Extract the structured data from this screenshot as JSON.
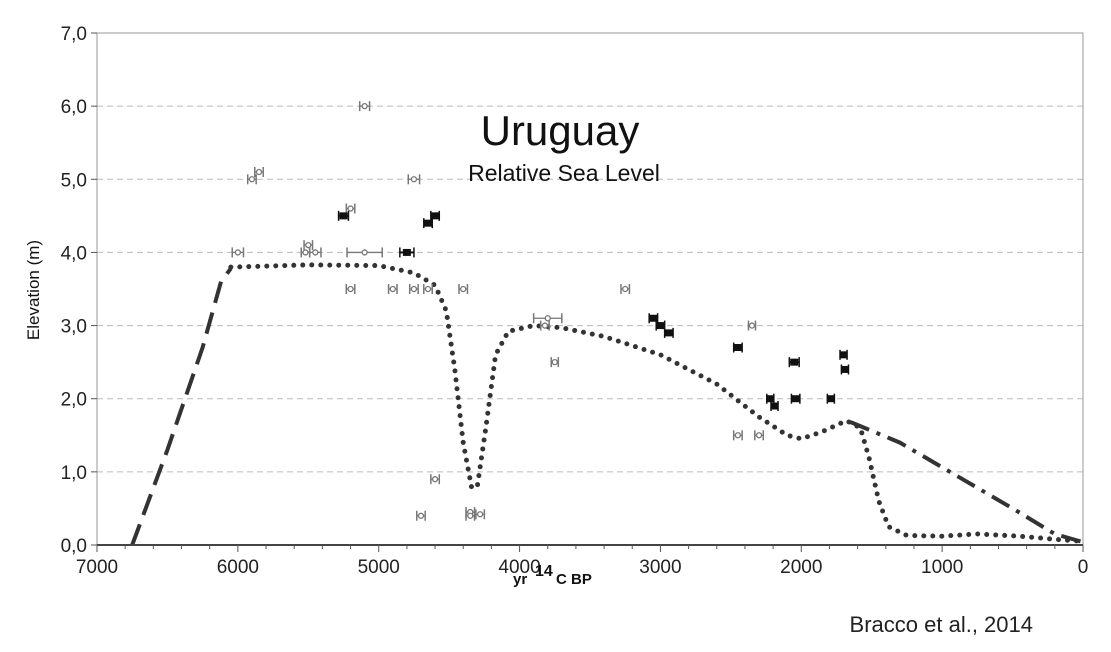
{
  "chart_data": {
    "type": "scatter",
    "title": "Uruguay",
    "subtitle": "Relative Sea Level",
    "xlabel_prefix": "yr ",
    "xlabel_sup": "14",
    "xlabel_suffix": "C BP",
    "ylabel": "Elevation (m)",
    "credit": "Bracco et al., 2014",
    "xlim": [
      7000,
      0
    ],
    "ylim": [
      0,
      7
    ],
    "x_reversed": true,
    "grid": "horizontal dashed",
    "x_ticks": [
      "7000",
      "6000",
      "5000",
      "4000",
      "3000",
      "2000",
      "1000",
      "0"
    ],
    "x_tick_values": [
      7000,
      6000,
      5000,
      4000,
      3000,
      2000,
      1000,
      0
    ],
    "y_ticks": [
      "0,0",
      "1,0",
      "2,0",
      "3,0",
      "4,0",
      "5,0",
      "6,0",
      "7,0"
    ],
    "y_tick_values": [
      0,
      1,
      2,
      3,
      4,
      5,
      6,
      7
    ],
    "colors": {
      "open_points": "#777777",
      "filled_points": "#111111",
      "curves": "#333333",
      "grid": "#bbbbbb"
    },
    "series": [
      {
        "style": "open",
        "points": [
          [
            5100,
            6.0,
            70
          ],
          [
            5850,
            5.1,
            60
          ],
          [
            5900,
            5.0,
            60
          ],
          [
            4750,
            5.0,
            80
          ],
          [
            5200,
            4.6,
            60
          ],
          [
            6000,
            4.0,
            80
          ],
          [
            5500,
            4.1,
            60
          ],
          [
            5520,
            4.0,
            60
          ],
          [
            5450,
            4.0,
            80
          ],
          [
            5100,
            4.0,
            250
          ],
          [
            5200,
            3.5,
            60
          ],
          [
            4900,
            3.5,
            60
          ],
          [
            4750,
            3.5,
            60
          ],
          [
            4650,
            3.5,
            60
          ],
          [
            4400,
            3.5,
            60
          ],
          [
            3250,
            3.5,
            60
          ],
          [
            3800,
            3.1,
            200
          ],
          [
            3820,
            3.0,
            60
          ],
          [
            3750,
            2.5,
            50
          ],
          [
            2350,
            3.0,
            50
          ],
          [
            2450,
            1.5,
            60
          ],
          [
            2300,
            1.5,
            60
          ],
          [
            4600,
            0.9,
            60
          ],
          [
            4700,
            0.4,
            60
          ],
          [
            4350,
            0.45,
            60
          ],
          [
            4350,
            0.4,
            60
          ],
          [
            4280,
            0.42,
            60
          ]
        ]
      },
      {
        "style": "filled",
        "points": [
          [
            5250,
            4.5,
            70
          ],
          [
            4600,
            4.5,
            60
          ],
          [
            4650,
            4.4,
            60
          ],
          [
            4800,
            4.0,
            100
          ],
          [
            3050,
            3.1,
            60
          ],
          [
            3000,
            3.0,
            60
          ],
          [
            2940,
            2.9,
            60
          ],
          [
            2450,
            2.7,
            60
          ],
          [
            2050,
            2.5,
            70
          ],
          [
            1700,
            2.6,
            50
          ],
          [
            1690,
            2.4,
            50
          ],
          [
            2220,
            2.0,
            50
          ],
          [
            2040,
            2.0,
            60
          ],
          [
            1790,
            2.0,
            50
          ],
          [
            2190,
            1.9,
            50
          ]
        ]
      }
    ],
    "curves": [
      {
        "style": "dashed",
        "points": [
          [
            6750,
            0
          ],
          [
            6500,
            1.3
          ],
          [
            6250,
            2.7
          ],
          [
            6120,
            3.6
          ],
          [
            6050,
            3.78
          ]
        ]
      },
      {
        "style": "dotted",
        "points": [
          [
            6050,
            3.8
          ],
          [
            5500,
            3.83
          ],
          [
            5000,
            3.82
          ],
          [
            4750,
            3.72
          ],
          [
            4600,
            3.55
          ],
          [
            4520,
            3.2
          ],
          [
            4460,
            2.4
          ],
          [
            4400,
            1.4
          ],
          [
            4340,
            0.78
          ],
          [
            4300,
            0.8
          ],
          [
            4240,
            1.6
          ],
          [
            4170,
            2.6
          ],
          [
            4080,
            2.92
          ],
          [
            3900,
            3.0
          ],
          [
            3700,
            2.97
          ],
          [
            3400,
            2.85
          ],
          [
            3000,
            2.6
          ],
          [
            2600,
            2.2
          ],
          [
            2300,
            1.75
          ],
          [
            2100,
            1.5
          ],
          [
            2000,
            1.45
          ],
          [
            1850,
            1.55
          ],
          [
            1680,
            1.7
          ],
          [
            1580,
            1.6
          ],
          [
            1520,
            1.2
          ],
          [
            1450,
            0.6
          ],
          [
            1380,
            0.25
          ],
          [
            1250,
            0.13
          ],
          [
            1000,
            0.12
          ],
          [
            750,
            0.15
          ],
          [
            450,
            0.12
          ],
          [
            150,
            0.07
          ],
          [
            0,
            0.05
          ]
        ]
      },
      {
        "style": "dashdot",
        "points": [
          [
            1650,
            1.68
          ],
          [
            1300,
            1.4
          ],
          [
            900,
            0.95
          ],
          [
            500,
            0.5
          ],
          [
            200,
            0.15
          ],
          [
            0,
            0.04
          ]
        ]
      }
    ]
  }
}
